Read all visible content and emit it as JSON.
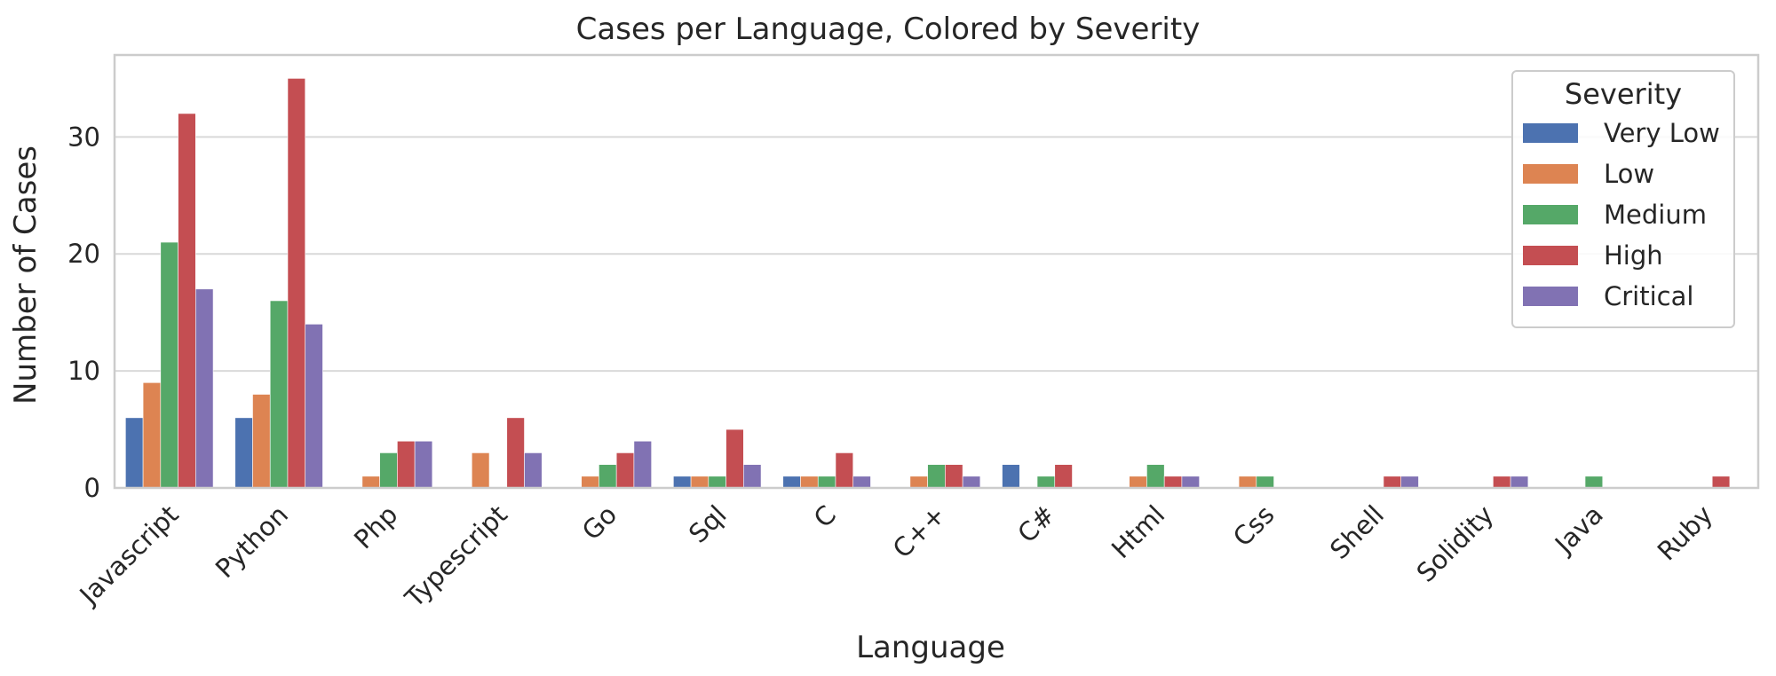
{
  "chart_data": {
    "type": "bar",
    "title": "Cases per Language, Colored by Severity",
    "xlabel": "Language",
    "ylabel": "Number of Cases",
    "ylim": [
      0,
      37
    ],
    "yticks": [
      0,
      10,
      20,
      30
    ],
    "grid": "horizontal",
    "legend": {
      "title": "Severity",
      "placement": "top-right"
    },
    "categories": [
      "Javascript",
      "Python",
      "Php",
      "Typescript",
      "Go",
      "Sql",
      "C",
      "C++",
      "C#",
      "Html",
      "Css",
      "Shell",
      "Solidity",
      "Java",
      "Ruby"
    ],
    "series": [
      {
        "name": "Very Low",
        "color": "#4c72b0",
        "values": [
          6,
          6,
          0,
          0,
          0,
          1,
          1,
          0,
          2,
          0,
          0,
          0,
          0,
          0,
          0
        ]
      },
      {
        "name": "Low",
        "color": "#dd8452",
        "values": [
          9,
          8,
          1,
          3,
          1,
          1,
          1,
          1,
          0,
          1,
          1,
          0,
          0,
          0,
          0
        ]
      },
      {
        "name": "Medium",
        "color": "#55a868",
        "values": [
          21,
          16,
          3,
          0,
          2,
          1,
          1,
          2,
          1,
          2,
          1,
          0,
          0,
          1,
          0
        ]
      },
      {
        "name": "High",
        "color": "#c44e52",
        "values": [
          32,
          35,
          4,
          6,
          3,
          5,
          3,
          2,
          2,
          1,
          0,
          1,
          1,
          0,
          1
        ]
      },
      {
        "name": "Critical",
        "color": "#8172b3",
        "values": [
          17,
          14,
          4,
          3,
          4,
          2,
          1,
          1,
          0,
          1,
          0,
          1,
          1,
          0,
          0
        ]
      }
    ]
  }
}
